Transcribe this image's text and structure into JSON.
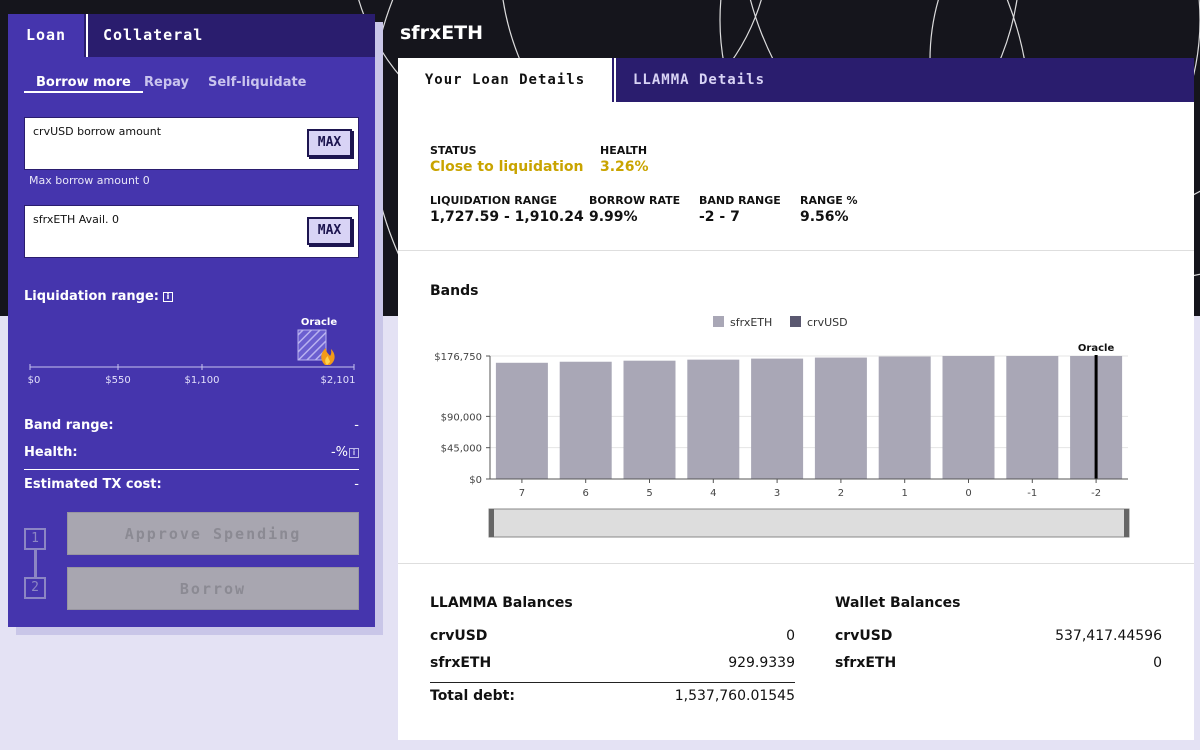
{
  "left": {
    "tabs": [
      "Loan",
      "Collateral"
    ],
    "subtabs": [
      "Borrow more",
      "Repay",
      "Self-liquidate"
    ],
    "borrow_input": {
      "label": "crvUSD borrow amount",
      "max": "MAX",
      "hint": "Max borrow amount 0"
    },
    "collateral_input": {
      "label": "sfrxETH Avail. 0",
      "max": "MAX"
    },
    "liquidation": {
      "title": "Liquidation range:",
      "oracle_label": "Oracle",
      "ticks": [
        "$0",
        "$550",
        "$1,100",
        "$2,101"
      ]
    },
    "band_range": {
      "label": "Band range:",
      "value": "-"
    },
    "health": {
      "label": "Health:",
      "value": "-%"
    },
    "tx_cost": {
      "label": "Estimated TX cost:",
      "value": "-"
    },
    "steps": [
      "1",
      "2"
    ],
    "approve_label": "Approve Spending",
    "borrow_label": "Borrow"
  },
  "right": {
    "asset": "sfrxETH",
    "tabs": [
      "Your Loan Details",
      "LLAMMA Details"
    ],
    "status": {
      "label": "STATUS",
      "value": "Close to liquidation"
    },
    "health": {
      "label": "HEALTH",
      "value": "3.26%"
    },
    "liq_range": {
      "label": "LIQUIDATION RANGE",
      "value": "1,727.59 - 1,910.24"
    },
    "borrow_rate": {
      "label": "BORROW RATE",
      "value": "9.99%"
    },
    "band_range": {
      "label": "BAND RANGE",
      "value": "-2 - 7"
    },
    "range_pct": {
      "label": "RANGE %",
      "value": "9.56%"
    },
    "bands_title": "Bands",
    "llamma": {
      "title": "LLAMMA Balances",
      "rows": [
        {
          "k": "crvUSD",
          "v": "0"
        },
        {
          "k": "sfrxETH",
          "v": "929.9339"
        }
      ],
      "total_label": "Total debt:",
      "total_value": "1,537,760.01545"
    },
    "wallet": {
      "title": "Wallet Balances",
      "rows": [
        {
          "k": "crvUSD",
          "v": "537,417.44596"
        },
        {
          "k": "sfrxETH",
          "v": "0"
        }
      ]
    }
  },
  "chart_data": {
    "type": "bar",
    "categories": [
      "7",
      "6",
      "5",
      "4",
      "3",
      "2",
      "1",
      "0",
      "-1",
      "-2"
    ],
    "series": [
      {
        "name": "sfrxETH",
        "color": "#a9a7b6",
        "values": [
          167000,
          168500,
          170000,
          171500,
          173000,
          174500,
          176000,
          177500,
          179000,
          181000
        ]
      },
      {
        "name": "crvUSD",
        "color": "#5a5870",
        "values": [
          0,
          0,
          0,
          0,
          0,
          0,
          0,
          0,
          0,
          0
        ]
      }
    ],
    "yticks": [
      "$0",
      "$45,000",
      "$90,000",
      "$176,750"
    ],
    "ytick_values": [
      0,
      45000,
      90000,
      176750
    ],
    "ylim": [
      0,
      176750
    ],
    "oracle_label": "Oracle",
    "oracle_band": "-2",
    "legend_position": "top-center",
    "grid": true
  }
}
